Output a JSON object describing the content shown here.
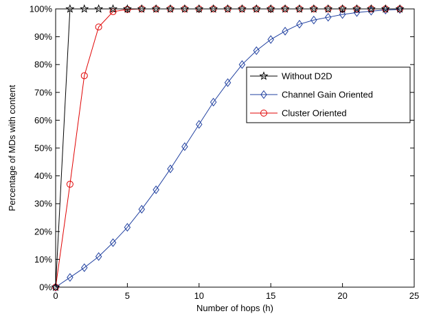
{
  "chart_data": {
    "type": "line",
    "title": "",
    "xlabel": "Number of hops (h)",
    "ylabel": "Percentage of MDs with content",
    "xlim": [
      0,
      25
    ],
    "ylim": [
      0,
      100
    ],
    "x_ticks": [
      "0",
      "5",
      "10",
      "15",
      "20",
      "25"
    ],
    "y_ticks": [
      "0%",
      "10%",
      "20%",
      "30%",
      "40%",
      "50%",
      "60%",
      "70%",
      "80%",
      "90%",
      "100%"
    ],
    "grid": false,
    "legend_position": "right",
    "series": [
      {
        "name": "Without D2D",
        "color": "#000000",
        "marker": "star",
        "x": [
          0,
          1,
          2,
          3,
          4,
          5,
          6,
          7,
          8,
          9,
          10,
          11,
          12,
          13,
          14,
          15,
          16,
          17,
          18,
          19,
          20,
          21,
          22,
          23,
          24
        ],
        "values": [
          0,
          100,
          100,
          100,
          100,
          100,
          100,
          100,
          100,
          100,
          100,
          100,
          100,
          100,
          100,
          100,
          100,
          100,
          100,
          100,
          100,
          100,
          100,
          100,
          100
        ]
      },
      {
        "name": "Channel Gain Oriented",
        "color": "#1f3f9f",
        "marker": "diamond",
        "x": [
          0,
          1,
          2,
          3,
          4,
          5,
          6,
          7,
          8,
          9,
          10,
          11,
          12,
          13,
          14,
          15,
          16,
          17,
          18,
          19,
          20,
          21,
          22,
          23,
          24
        ],
        "values": [
          0,
          3.5,
          7,
          11,
          16,
          21.5,
          28,
          35,
          42.5,
          50.5,
          58.5,
          66.5,
          73.5,
          80,
          85,
          89,
          92,
          94.5,
          96,
          97,
          98,
          98.7,
          99.2,
          99.6,
          99.8
        ]
      },
      {
        "name": "Cluster Oriented",
        "color": "#e00000",
        "marker": "circle",
        "x": [
          0,
          1,
          2,
          3,
          4,
          5,
          6,
          7,
          8,
          9,
          10,
          11,
          12,
          13,
          14,
          15,
          16,
          17,
          18,
          19,
          20,
          21,
          22,
          23,
          24
        ],
        "values": [
          0,
          37,
          76,
          93.5,
          99,
          99.8,
          100,
          100,
          100,
          100,
          100,
          100,
          100,
          100,
          100,
          100,
          100,
          100,
          100,
          100,
          100,
          100,
          100,
          100,
          100
        ]
      }
    ]
  }
}
